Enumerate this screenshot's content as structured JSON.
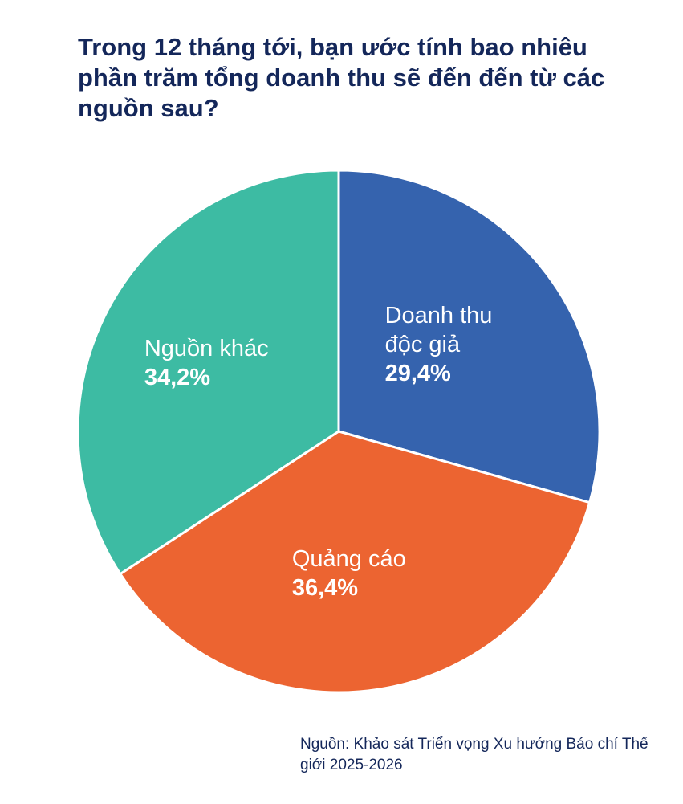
{
  "chart_data": {
    "type": "pie",
    "title": "Trong 12 tháng tới, bạn ước tính bao nhiêu phần trăm tổng doanh thu sẽ đến đến từ các nguồn sau?",
    "categories": [
      "Doanh thu độc giả",
      "Quảng cáo",
      "Nguồn khác"
    ],
    "values": [
      29.4,
      36.4,
      34.2
    ],
    "value_labels": [
      "29,4%",
      "36,4%",
      "34,2%"
    ],
    "colors": [
      "#3563ae",
      "#ec6431",
      "#3dbba3"
    ],
    "source": "Nguồn: Khảo sát Triển vọng Xu hướng Báo chí Thế giới 2025-2026"
  }
}
